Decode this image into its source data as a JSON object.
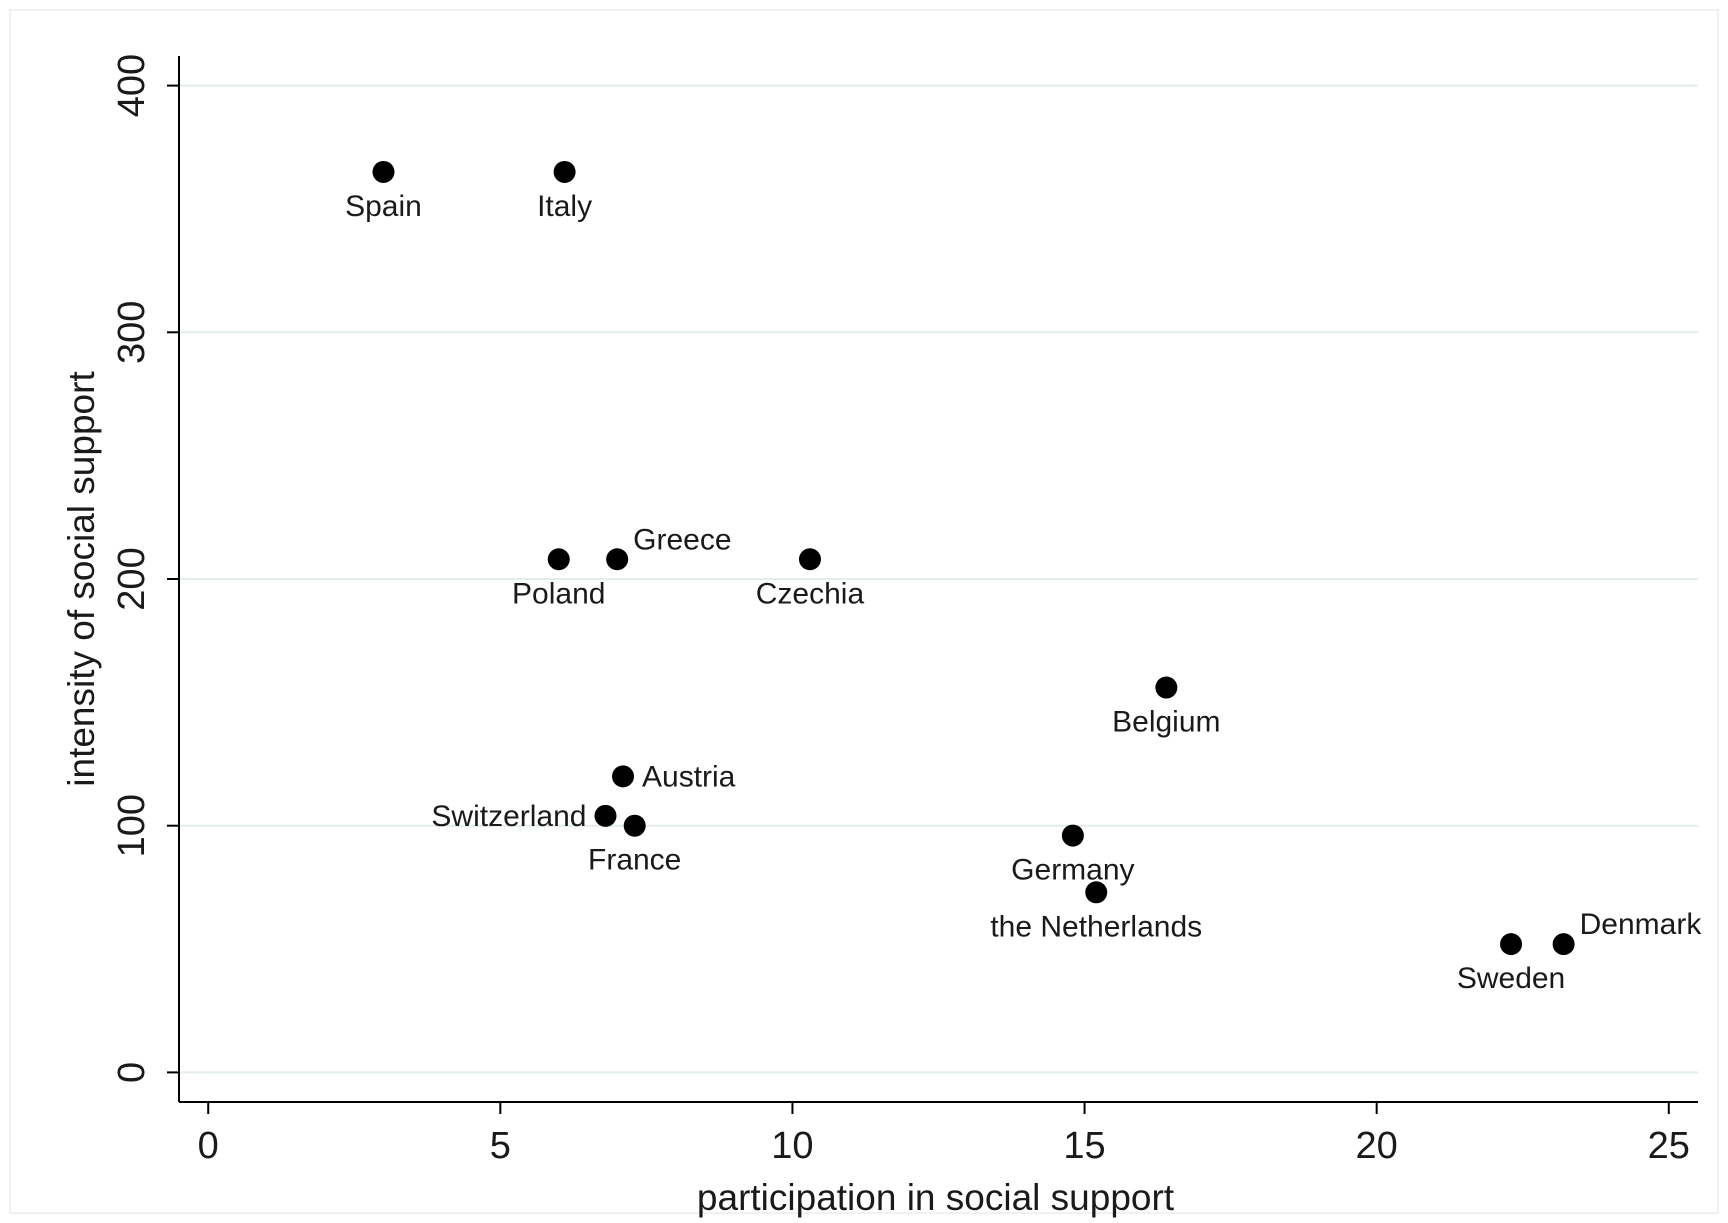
{
  "chart_data": {
    "type": "scatter",
    "title": "",
    "xlabel": "participation in social support",
    "ylabel": "intensity of social support",
    "xlim": [
      -0.5,
      25.5
    ],
    "ylim": [
      -12,
      412
    ],
    "xticks": [
      0,
      5,
      10,
      15,
      20,
      25
    ],
    "yticks": [
      0,
      100,
      200,
      300,
      400
    ],
    "grid": {
      "y": true,
      "x": false
    },
    "legend": "none",
    "colors": {
      "marker": "#000000",
      "grid": "#e3ecee",
      "axis": "#000000"
    },
    "points": [
      {
        "label": "Spain",
        "x": 3.0,
        "y": 365,
        "label_pos": "below"
      },
      {
        "label": "Italy",
        "x": 6.1,
        "y": 365,
        "label_pos": "below"
      },
      {
        "label": "Poland",
        "x": 6.0,
        "y": 208,
        "label_pos": "below"
      },
      {
        "label": "Greece",
        "x": 7.0,
        "y": 208,
        "label_pos": "above-right"
      },
      {
        "label": "Czechia",
        "x": 10.3,
        "y": 208,
        "label_pos": "below"
      },
      {
        "label": "Belgium",
        "x": 16.4,
        "y": 156,
        "label_pos": "below"
      },
      {
        "label": "Austria",
        "x": 7.1,
        "y": 120,
        "label_pos": "right"
      },
      {
        "label": "Switzerland",
        "x": 6.8,
        "y": 104,
        "label_pos": "left"
      },
      {
        "label": "France",
        "x": 7.3,
        "y": 100,
        "label_pos": "below"
      },
      {
        "label": "Germany",
        "x": 14.8,
        "y": 96,
        "label_pos": "below"
      },
      {
        "label": "the Netherlands",
        "x": 15.2,
        "y": 73,
        "label_pos": "below"
      },
      {
        "label": "Sweden",
        "x": 22.3,
        "y": 52,
        "label_pos": "below"
      },
      {
        "label": "Denmark",
        "x": 23.2,
        "y": 52,
        "label_pos": "above-right"
      }
    ]
  }
}
